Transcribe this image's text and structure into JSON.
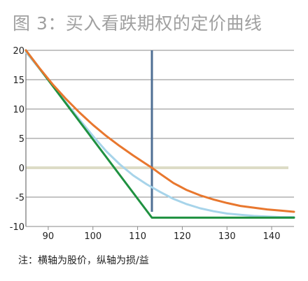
{
  "title": "图 3：买入看跌期权的定价曲线",
  "note": "注：横轴为股价，纵轴为损/益",
  "colors": {
    "orange": "#e8772e",
    "light_blue": "#a7d4ea",
    "green": "#1f9140",
    "strike_line": "#4f6f94",
    "zero_line": "#dddcc6",
    "grid": "#8a8a8a"
  },
  "chart_data": {
    "type": "line",
    "title": "图 3：买入看跌期权的定价曲线",
    "xlabel": "",
    "ylabel": "",
    "xlim": [
      85,
      145
    ],
    "ylim": [
      -10,
      20
    ],
    "x_ticks": [
      90,
      100,
      110,
      120,
      130,
      140
    ],
    "y_ticks": [
      20,
      15,
      10,
      5,
      0,
      -5,
      -10
    ],
    "y_tick_labels": [
      "20",
      "15",
      "10",
      "5",
      "0",
      "-5",
      "-10"
    ],
    "grid": "horizontal",
    "legend": "none",
    "series": [
      {
        "color_key": "orange",
        "x": [
          85,
          88,
          91,
          94,
          97,
          100,
          103,
          106,
          109,
          112,
          113.2,
          115,
          118,
          121,
          124,
          127,
          130,
          133,
          136,
          139,
          142,
          145
        ],
        "y": [
          20,
          17,
          14.2,
          11.7,
          9.4,
          7.3,
          5.4,
          3.7,
          2.1,
          0.6,
          0,
          -1.0,
          -2.6,
          -3.8,
          -4.7,
          -5.4,
          -6.0,
          -6.5,
          -6.8,
          -7.1,
          -7.3,
          -7.5
        ]
      },
      {
        "color_key": "light_blue",
        "x": [
          85,
          88,
          91,
          94,
          97,
          100,
          103,
          106,
          109,
          112,
          115,
          118,
          121,
          124,
          127,
          130,
          133,
          136,
          139,
          142,
          145
        ],
        "y": [
          19.7,
          16.9,
          14.0,
          11.1,
          8.2,
          5.4,
          2.8,
          0.6,
          -1.3,
          -2.8,
          -4.1,
          -5.3,
          -6.2,
          -6.9,
          -7.4,
          -7.8,
          -8.0,
          -8.2,
          -8.3,
          -8.4,
          -8.4
        ]
      },
      {
        "color_key": "green",
        "x": [
          85,
          113.2,
          145
        ],
        "y": [
          20,
          -8.5,
          -8.5
        ]
      }
    ],
    "vertical_marker": {
      "x": 113.2,
      "y_range": [
        -7.5,
        20
      ],
      "color_key": "strike_line"
    },
    "zero_line": {
      "y": 0,
      "color_key": "zero_line"
    }
  }
}
